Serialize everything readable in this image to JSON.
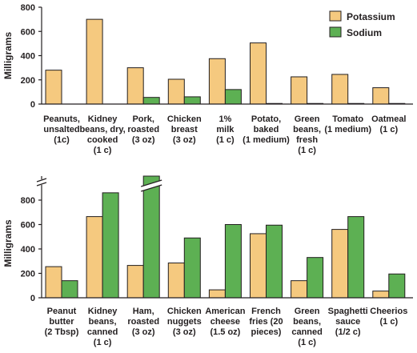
{
  "colors": {
    "potassium": "#f5c97f",
    "sodium": "#5db053",
    "ink": "#231f20"
  },
  "legend": {
    "placement": "top-right",
    "items": [
      "Potassium",
      "Sodium"
    ]
  },
  "chart_data": [
    {
      "type": "bar",
      "ylabel": "Milligrams",
      "ylim": [
        0,
        800
      ],
      "yticks": [
        0,
        200,
        400,
        600,
        800
      ],
      "categories": [
        [
          "Peanuts,",
          "unsalted",
          "(1c)"
        ],
        [
          "Kidney",
          "beans, dry,",
          "cooked",
          "(1 c)"
        ],
        [
          "Pork,",
          "roasted",
          "(3 oz)"
        ],
        [
          "Chicken",
          "breast",
          "(3 oz)"
        ],
        [
          "1%",
          "milk",
          "(1 c)"
        ],
        [
          "Potato,",
          "baked",
          "(1 medium)"
        ],
        [
          "Green",
          "beans,",
          "fresh",
          "(1 c)"
        ],
        [
          "Tomato",
          "(1 medium)"
        ],
        [
          "Oatmeal",
          "(1 c)"
        ]
      ],
      "series": [
        {
          "name": "Potassium",
          "values": [
            280,
            700,
            300,
            205,
            375,
            505,
            225,
            245,
            135
          ]
        },
        {
          "name": "Sodium",
          "values": [
            0,
            0,
            55,
            60,
            120,
            5,
            5,
            5,
            5
          ]
        }
      ],
      "legend": "top-right"
    },
    {
      "type": "bar",
      "ylabel": "Milligrams",
      "ylim": [
        0,
        900
      ],
      "yticks": [
        0,
        200,
        400,
        600,
        800
      ],
      "axis_break": true,
      "categories": [
        [
          "Peanut",
          "butter",
          "(2 Tbsp)"
        ],
        [
          "Kidney",
          "beans,",
          "canned",
          "(1 c)"
        ],
        [
          "Ham,",
          "roasted",
          "(3 oz)"
        ],
        [
          "Chicken",
          "nuggets",
          "(3 oz)"
        ],
        [
          "American",
          "cheese",
          "(1.5 oz)"
        ],
        [
          "French",
          "fries (20",
          "pieces)"
        ],
        [
          "Green",
          "beans,",
          "canned",
          "(1 c)"
        ],
        [
          "Spaghetti",
          "sauce",
          "(1/2 c)"
        ],
        [
          "Cheerios",
          "(1 c)"
        ]
      ],
      "series": [
        {
          "name": "Potassium",
          "values": [
            255,
            665,
            265,
            285,
            65,
            525,
            140,
            560,
            55
          ]
        },
        {
          "name": "Sodium",
          "values": [
            140,
            860,
            980,
            490,
            600,
            595,
            330,
            665,
            195
          ]
        }
      ]
    }
  ]
}
